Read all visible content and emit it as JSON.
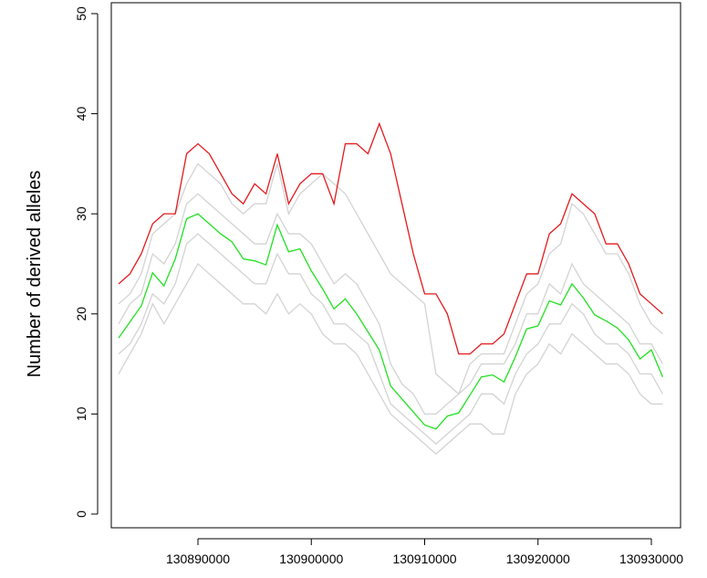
{
  "chart_data": {
    "type": "line",
    "y_label": "Number of derived alleles",
    "x": [
      130883000,
      130884000,
      130885000,
      130886000,
      130887000,
      130888000,
      130889000,
      130890000,
      130891000,
      130892000,
      130893000,
      130894000,
      130895000,
      130896000,
      130897000,
      130898000,
      130899000,
      130900000,
      130901000,
      130902000,
      130903000,
      130904000,
      130905000,
      130906000,
      130907000,
      130908000,
      130909000,
      130910000,
      130911000,
      130912000,
      130913000,
      130914000,
      130915000,
      130916000,
      130917000,
      130918000,
      130919000,
      130920000,
      130921000,
      130922000,
      130923000,
      130924000,
      130925000,
      130926000,
      130927000,
      130928000,
      130929000,
      130930000,
      130931000
    ],
    "series": [
      {
        "color": "#d3d3d3",
        "values": [
          21,
          22,
          24,
          28,
          29,
          30,
          33,
          35,
          34,
          33,
          31,
          30,
          31,
          31,
          35,
          30,
          32,
          33,
          34,
          33,
          32,
          30,
          28,
          26,
          24,
          23,
          22,
          21,
          14,
          13,
          12,
          15,
          16,
          16,
          16,
          19,
          22,
          23,
          26,
          27,
          31,
          30,
          28,
          26,
          26,
          24,
          21,
          19,
          18
        ]
      },
      {
        "color": "#d3d3d3",
        "values": [
          14,
          16,
          18,
          21,
          19,
          21,
          23,
          25,
          24,
          23,
          22,
          21,
          21,
          20,
          22,
          20,
          21,
          20,
          18,
          17,
          17,
          16,
          14,
          12,
          10,
          9,
          8,
          7,
          6,
          7,
          8,
          9,
          9,
          8,
          8,
          12,
          14,
          15,
          17,
          16,
          18,
          17,
          16,
          15,
          15,
          14,
          12,
          11,
          11
        ]
      },
      {
        "color": "#d3d3d3",
        "values": [
          19,
          21,
          22,
          26,
          25,
          27,
          31,
          32,
          31,
          30,
          29,
          28,
          27,
          27,
          30,
          28,
          28,
          27,
          25,
          23,
          24,
          23,
          21,
          19,
          15,
          13,
          12,
          10,
          10,
          11,
          12,
          13,
          15,
          15,
          15,
          17,
          20,
          20,
          23,
          22,
          25,
          23,
          22,
          21,
          20,
          19,
          17,
          17,
          15
        ]
      },
      {
        "color": "#d3d3d3",
        "values": [
          16,
          17,
          19,
          22,
          21,
          23,
          27,
          28,
          27,
          26,
          25,
          24,
          23,
          23,
          26,
          24,
          24,
          22,
          21,
          19,
          19,
          18,
          17,
          14,
          11,
          10,
          9,
          8,
          7,
          8,
          9,
          10,
          12,
          12,
          11,
          14,
          16,
          17,
          19,
          19,
          21,
          20,
          18,
          17,
          17,
          16,
          14,
          14,
          12
        ]
      },
      {
        "color": "#e31a1c",
        "values": [
          23,
          24,
          26,
          29,
          30,
          30,
          36,
          37,
          36,
          34,
          32,
          31,
          33,
          32,
          36,
          31,
          33,
          34,
          34,
          31,
          37,
          37,
          36,
          39,
          36,
          31,
          26,
          22,
          22,
          20,
          16,
          16,
          17,
          17,
          18,
          21,
          24,
          24,
          28,
          29,
          32,
          31,
          30,
          27,
          27,
          25,
          22,
          21,
          20
        ]
      },
      {
        "color": "#22e022",
        "values": [
          17.6,
          19.2,
          20.8,
          24.1,
          22.8,
          25.5,
          29.5,
          30.0,
          29.0,
          28.0,
          27.2,
          25.5,
          25.3,
          24.9,
          28.9,
          26.2,
          26.5,
          24.3,
          22.5,
          20.5,
          21.5,
          20.0,
          18.2,
          16.4,
          12.8,
          11.5,
          10.2,
          8.9,
          8.5,
          9.8,
          10.1,
          11.9,
          13.7,
          13.9,
          13.2,
          15.7,
          18.5,
          18.8,
          21.3,
          20.9,
          23.0,
          21.6,
          19.9,
          19.3,
          18.6,
          17.4,
          15.5,
          16.4,
          13.7
        ]
      }
    ],
    "xlim": [
      130882354,
      130932575
    ],
    "ylim": [
      -1.37,
      51.09
    ],
    "xticks": [
      130890000,
      130900000,
      130910000,
      130920000,
      130930000
    ],
    "yticks": [
      0,
      10,
      20,
      30,
      40,
      50
    ]
  }
}
